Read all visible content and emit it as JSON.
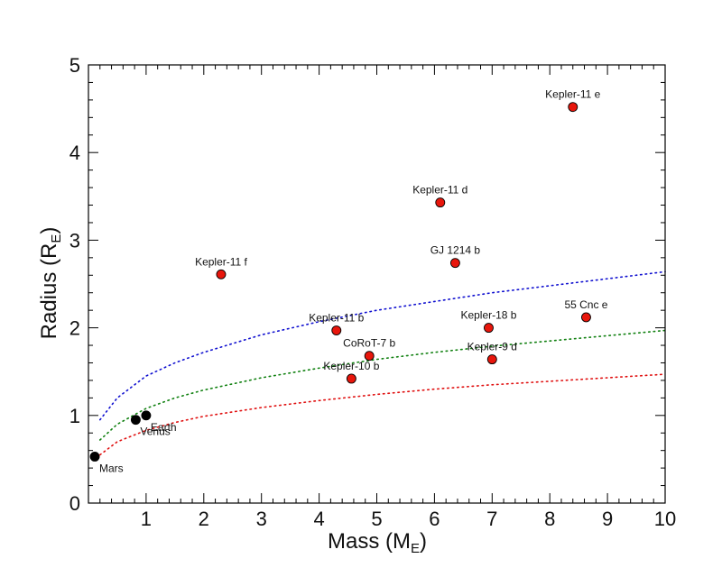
{
  "chart_data": {
    "type": "scatter",
    "xlabel": {
      "main": "Mass (M",
      "sub": "E",
      "close": ")"
    },
    "ylabel": {
      "main": "Radius (R",
      "sub": "E",
      "close": ")"
    },
    "xlim": [
      0,
      10
    ],
    "ylim": [
      0,
      5
    ],
    "x_ticks": [
      1,
      2,
      3,
      4,
      5,
      6,
      7,
      8,
      9,
      10
    ],
    "y_ticks": [
      0,
      1,
      2,
      3,
      4,
      5
    ],
    "grid": false,
    "exoplanets": [
      {
        "name": "Kepler-11 e",
        "mass": 8.4,
        "radius": 4.52,
        "label_pos": "above"
      },
      {
        "name": "Kepler-11 d",
        "mass": 6.1,
        "radius": 3.43,
        "label_pos": "above"
      },
      {
        "name": "GJ 1214 b",
        "mass": 6.36,
        "radius": 2.74,
        "label_pos": "above"
      },
      {
        "name": "Kepler-11 f",
        "mass": 2.3,
        "radius": 2.61,
        "label_pos": "above"
      },
      {
        "name": "55 Cnc e",
        "mass": 8.63,
        "radius": 2.12,
        "label_pos": "above"
      },
      {
        "name": "Kepler-11 b",
        "mass": 4.3,
        "radius": 1.97,
        "label_pos": "above"
      },
      {
        "name": "Kepler-18 b",
        "mass": 6.94,
        "radius": 2.0,
        "label_pos": "above"
      },
      {
        "name": "CoRoT-7 b",
        "mass": 4.87,
        "radius": 1.68,
        "label_pos": "above"
      },
      {
        "name": "Kepler-9 d",
        "mass": 7.0,
        "radius": 1.64,
        "label_pos": "above"
      },
      {
        "name": "Kepler-10 b",
        "mass": 4.56,
        "radius": 1.42,
        "label_pos": "above"
      }
    ],
    "solar_planets": [
      {
        "name": "Earth",
        "mass": 1.0,
        "radius": 1.0,
        "label_pos": "below-right"
      },
      {
        "name": "Venus",
        "mass": 0.82,
        "radius": 0.95,
        "label_pos": "below-right"
      },
      {
        "name": "Mars",
        "mass": 0.11,
        "radius": 0.53,
        "label_pos": "below-right"
      }
    ],
    "model_curves": [
      {
        "color": "#1010d0",
        "x": [
          0.2,
          0.5,
          1,
          1.5,
          2,
          3,
          4,
          5,
          6,
          7,
          8,
          9,
          10
        ],
        "y": [
          0.95,
          1.2,
          1.45,
          1.6,
          1.72,
          1.92,
          2.07,
          2.2,
          2.3,
          2.4,
          2.48,
          2.56,
          2.64
        ]
      },
      {
        "color": "#108010",
        "x": [
          0.2,
          0.5,
          1,
          1.5,
          2,
          3,
          4,
          5,
          6,
          7,
          8,
          9,
          10
        ],
        "y": [
          0.72,
          0.9,
          1.08,
          1.2,
          1.29,
          1.43,
          1.54,
          1.64,
          1.72,
          1.79,
          1.85,
          1.91,
          1.97
        ]
      },
      {
        "color": "#e01010",
        "x": [
          0.2,
          0.5,
          1,
          1.5,
          2,
          3,
          4,
          5,
          6,
          7,
          8,
          9,
          10
        ],
        "y": [
          0.55,
          0.7,
          0.83,
          0.92,
          0.99,
          1.09,
          1.17,
          1.24,
          1.3,
          1.35,
          1.39,
          1.43,
          1.47
        ]
      }
    ],
    "colors": {
      "exoplanet_fill": "#e8160c",
      "solar_fill": "#000000",
      "axis": "#000000"
    }
  }
}
